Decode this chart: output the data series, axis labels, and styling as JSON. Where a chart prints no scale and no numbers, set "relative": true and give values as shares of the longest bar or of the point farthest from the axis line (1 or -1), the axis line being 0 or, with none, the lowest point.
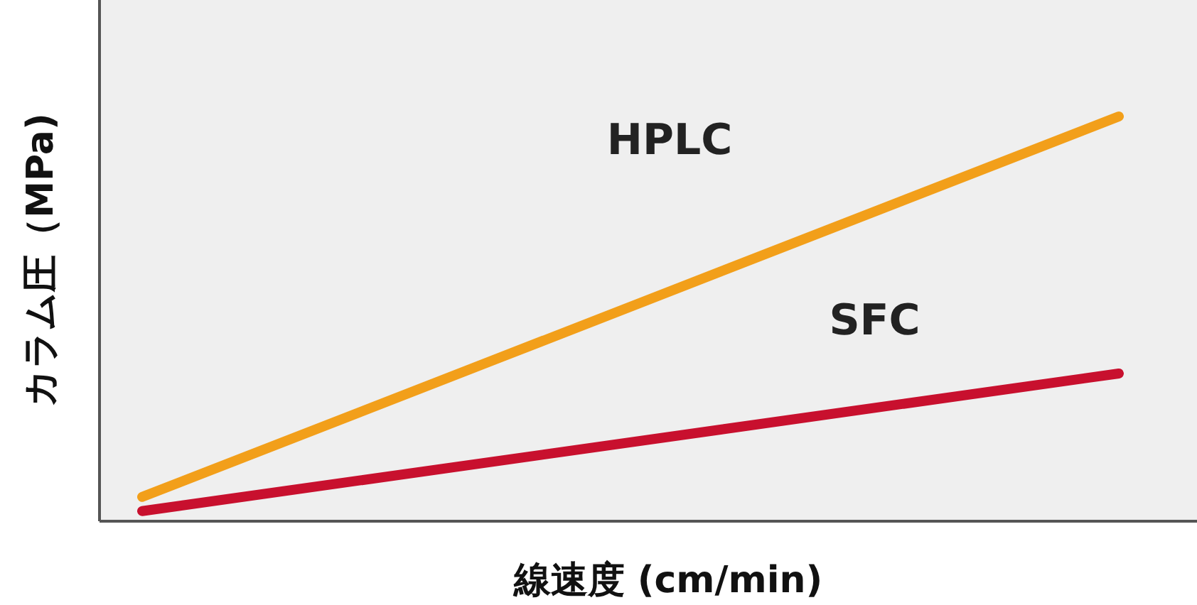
{
  "chart_data": {
    "type": "line",
    "relative": true,
    "xlabel": "線速度 (cm/min)",
    "ylabel": "カラム圧（MPa)",
    "categories": [
      null,
      null
    ],
    "series": [
      {
        "name": "HPLC",
        "color": "#f29f1a",
        "values": [
          0.06,
          1
        ]
      },
      {
        "name": "SFC",
        "color": "#c8102e",
        "values": [
          0.025,
          0.365
        ]
      }
    ]
  }
}
